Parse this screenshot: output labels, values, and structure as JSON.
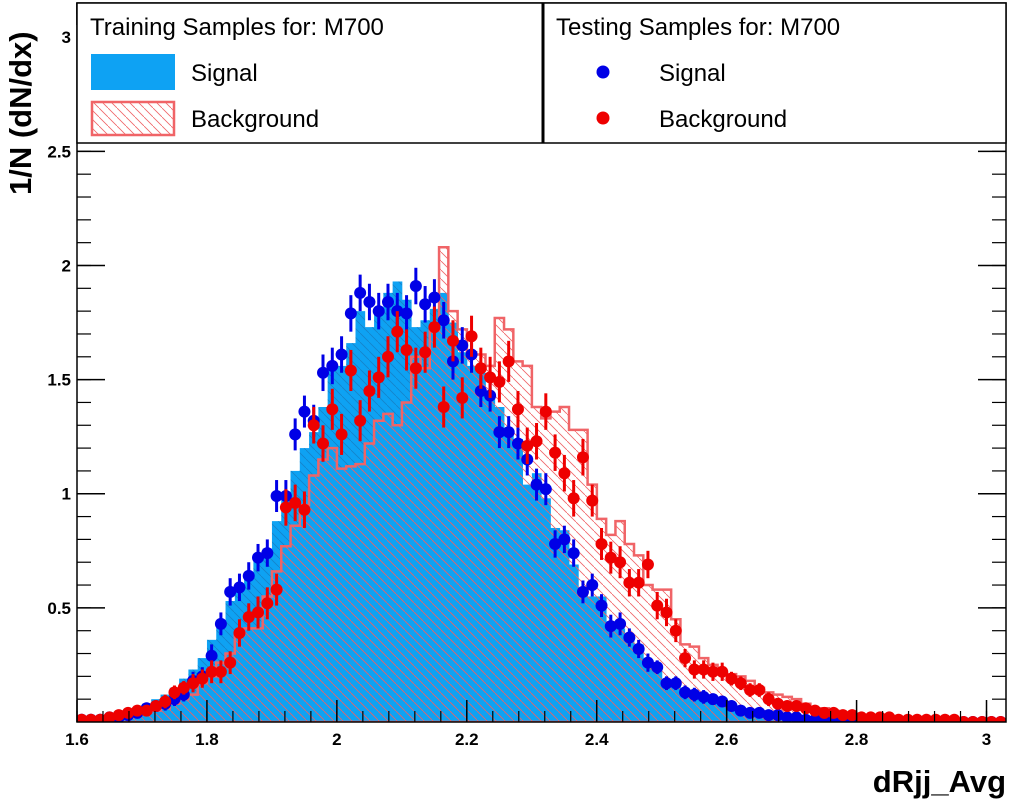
{
  "chart_data": {
    "type": "histogram",
    "xlabel": "dRjj_Avg",
    "ylabel": "1/N (dN/dx)",
    "xlim": [
      1.6,
      3.03
    ],
    "ylim": [
      0,
      3.15
    ],
    "x_ticks": [
      "1.6",
      "1.8",
      "2",
      "2.2",
      "2.4",
      "2.6",
      "2.8",
      "3"
    ],
    "x_tick_values": [
      1.6,
      1.8,
      2.0,
      2.2,
      2.4,
      2.6,
      2.8,
      3.0
    ],
    "y_ticks": [
      "0.5",
      "1",
      "1.5",
      "2",
      "2.5",
      "3"
    ],
    "y_tick_values": [
      0.5,
      1.0,
      1.5,
      2.0,
      2.5,
      3.0
    ],
    "bin_start": 1.6,
    "bin_width": 0.01429,
    "legend": {
      "training_title": "Training Samples for: M700",
      "testing_title": "Testing Samples for: M700",
      "signal_label": "Signal",
      "background_label": "Background"
    },
    "colors": {
      "signal_fill": "#0ea2f3",
      "background_line": "#f06467",
      "signal_points": "#0000e6",
      "background_points": "#ee0000"
    },
    "series": [
      {
        "name": "Signal",
        "kind": "training-filled",
        "values": [
          0.01,
          0.01,
          0.02,
          0.02,
          0.03,
          0.04,
          0.05,
          0.08,
          0.1,
          0.12,
          0.15,
          0.19,
          0.23,
          0.28,
          0.36,
          0.44,
          0.53,
          0.6,
          0.64,
          0.73,
          0.76,
          0.88,
          1.0,
          1.1,
          1.2,
          1.27,
          1.38,
          1.55,
          1.56,
          1.66,
          1.8,
          1.73,
          1.8,
          1.88,
          1.93,
          1.85,
          1.73,
          1.76,
          1.81,
          1.88,
          1.75,
          1.62,
          1.56,
          1.53,
          1.43,
          1.38,
          1.28,
          1.24,
          1.04,
          1.09,
          0.98,
          0.85,
          0.84,
          0.69,
          0.58,
          0.55,
          0.55,
          0.44,
          0.41,
          0.36,
          0.34,
          0.27,
          0.25,
          0.18,
          0.18,
          0.14,
          0.11,
          0.09,
          0.08,
          0.07,
          0.06,
          0.04,
          0.03,
          0.03,
          0.03,
          0.02,
          0.02,
          0.01,
          0.02,
          0.01,
          0.01,
          0.01,
          0.01,
          0.0,
          0.0,
          0.0,
          0.0,
          0.0,
          0.0,
          0.0,
          0.0,
          0.0,
          0.0,
          0.0,
          0.0,
          0.0,
          0.0,
          0.0,
          0.0,
          0.0
        ]
      },
      {
        "name": "Background",
        "kind": "training-hatched",
        "values": [
          0.01,
          0.01,
          0.01,
          0.01,
          0.02,
          0.02,
          0.03,
          0.04,
          0.05,
          0.06,
          0.08,
          0.1,
          0.12,
          0.17,
          0.2,
          0.26,
          0.3,
          0.38,
          0.41,
          0.41,
          0.55,
          0.66,
          0.77,
          0.86,
          0.95,
          1.08,
          1.15,
          1.2,
          1.11,
          1.12,
          1.13,
          1.22,
          1.32,
          1.35,
          1.3,
          1.4,
          1.6,
          1.55,
          1.72,
          2.08,
          1.8,
          1.72,
          1.62,
          1.61,
          1.56,
          1.77,
          1.72,
          1.58,
          1.56,
          1.38,
          1.33,
          1.36,
          1.38,
          1.28,
          1.28,
          1.04,
          0.89,
          0.82,
          0.88,
          0.78,
          0.73,
          0.6,
          0.58,
          0.58,
          0.45,
          0.34,
          0.33,
          0.28,
          0.25,
          0.22,
          0.21,
          0.2,
          0.18,
          0.15,
          0.13,
          0.12,
          0.11,
          0.1,
          0.08,
          0.06,
          0.06,
          0.05,
          0.04,
          0.03,
          0.03,
          0.03,
          0.02,
          0.02,
          0.01,
          0.01,
          0.01,
          0.01,
          0.01,
          0.01,
          0.01,
          0.0,
          0.0,
          0.0,
          0.0,
          0.0
        ]
      },
      {
        "name": "Signal",
        "kind": "testing-points",
        "values": [
          0.01,
          0.01,
          0.01,
          0.02,
          0.02,
          0.03,
          0.04,
          0.06,
          0.07,
          0.08,
          0.1,
          0.12,
          0.18,
          0.2,
          0.29,
          0.43,
          0.57,
          0.59,
          0.64,
          0.72,
          0.74,
          0.99,
          0.99,
          1.26,
          1.36,
          1.32,
          1.53,
          1.56,
          1.61,
          1.79,
          1.88,
          1.84,
          1.8,
          1.84,
          1.8,
          1.79,
          1.91,
          1.83,
          1.86,
          1.76,
          1.58,
          1.65,
          1.61,
          1.45,
          1.43,
          1.27,
          1.27,
          1.22,
          1.15,
          1.04,
          1.02,
          0.78,
          0.8,
          0.74,
          0.57,
          0.6,
          0.51,
          0.42,
          0.43,
          0.37,
          0.32,
          0.26,
          0.24,
          0.17,
          0.17,
          0.13,
          0.12,
          0.11,
          0.1,
          0.09,
          0.07,
          0.05,
          0.04,
          0.04,
          0.03,
          0.03,
          0.02,
          0.02,
          0.01,
          0.01,
          0.01,
          0.01,
          0.01,
          0.01,
          0.0,
          0.0,
          0.0,
          0.0,
          0.0,
          0.0,
          0.0,
          0.0,
          0.0,
          0.0,
          0.0,
          0.0,
          0.0,
          0.0,
          0.0,
          0.0
        ],
        "errors": [
          0.01,
          0.01,
          0.01,
          0.01,
          0.01,
          0.02,
          0.02,
          0.02,
          0.02,
          0.03,
          0.03,
          0.03,
          0.04,
          0.04,
          0.05,
          0.05,
          0.06,
          0.06,
          0.06,
          0.06,
          0.06,
          0.07,
          0.07,
          0.07,
          0.07,
          0.07,
          0.08,
          0.08,
          0.08,
          0.08,
          0.08,
          0.08,
          0.08,
          0.08,
          0.08,
          0.08,
          0.08,
          0.08,
          0.08,
          0.08,
          0.08,
          0.08,
          0.08,
          0.07,
          0.07,
          0.07,
          0.07,
          0.07,
          0.07,
          0.07,
          0.07,
          0.06,
          0.06,
          0.06,
          0.05,
          0.05,
          0.05,
          0.05,
          0.05,
          0.04,
          0.04,
          0.04,
          0.03,
          0.03,
          0.03,
          0.03,
          0.03,
          0.03,
          0.02,
          0.02,
          0.02,
          0.02,
          0.02,
          0.02,
          0.01,
          0.01,
          0.01,
          0.01,
          0.01,
          0.01,
          0.01,
          0.01,
          0.01,
          0.01,
          0.01,
          0.01,
          0.01,
          0.01,
          0.01,
          0.01,
          0.01,
          0.01,
          0.01,
          0.01,
          0.01,
          0.01,
          0.01,
          0.01,
          0.01,
          0.01
        ]
      },
      {
        "name": "Background",
        "kind": "testing-points",
        "values": [
          0.01,
          0.01,
          0.01,
          0.02,
          0.03,
          0.04,
          0.05,
          0.05,
          0.07,
          0.09,
          0.13,
          0.15,
          0.17,
          0.19,
          0.22,
          0.22,
          0.26,
          0.39,
          0.46,
          0.48,
          0.52,
          0.58,
          0.94,
          0.96,
          0.93,
          1.3,
          1.22,
          1.37,
          1.26,
          1.54,
          1.32,
          1.45,
          1.51,
          1.6,
          1.71,
          1.63,
          1.55,
          1.62,
          1.73,
          1.38,
          1.67,
          1.42,
          1.69,
          1.55,
          1.51,
          1.49,
          1.58,
          1.37,
          1.21,
          1.23,
          1.36,
          1.18,
          1.09,
          0.98,
          1.16,
          0.97,
          0.78,
          0.72,
          0.7,
          0.61,
          0.61,
          0.69,
          0.51,
          0.48,
          0.4,
          0.28,
          0.23,
          0.23,
          0.22,
          0.22,
          0.19,
          0.17,
          0.14,
          0.14,
          0.1,
          0.08,
          0.07,
          0.07,
          0.06,
          0.05,
          0.04,
          0.04,
          0.03,
          0.03,
          0.02,
          0.02,
          0.02,
          0.02,
          0.01,
          0.01,
          0.01,
          0.01,
          0.01,
          0.01,
          0.01,
          0.0,
          0.0,
          0.0,
          0.0,
          0.0
        ],
        "errors": [
          0.01,
          0.01,
          0.01,
          0.01,
          0.01,
          0.02,
          0.02,
          0.02,
          0.02,
          0.03,
          0.03,
          0.03,
          0.04,
          0.04,
          0.05,
          0.05,
          0.05,
          0.06,
          0.06,
          0.07,
          0.07,
          0.07,
          0.08,
          0.08,
          0.08,
          0.08,
          0.08,
          0.09,
          0.09,
          0.09,
          0.09,
          0.09,
          0.09,
          0.09,
          0.09,
          0.09,
          0.09,
          0.09,
          0.09,
          0.09,
          0.09,
          0.09,
          0.09,
          0.09,
          0.09,
          0.09,
          0.09,
          0.08,
          0.08,
          0.08,
          0.08,
          0.08,
          0.08,
          0.08,
          0.08,
          0.07,
          0.07,
          0.07,
          0.07,
          0.06,
          0.06,
          0.06,
          0.06,
          0.06,
          0.05,
          0.04,
          0.04,
          0.04,
          0.04,
          0.04,
          0.03,
          0.03,
          0.03,
          0.03,
          0.03,
          0.02,
          0.02,
          0.02,
          0.02,
          0.02,
          0.01,
          0.01,
          0.01,
          0.01,
          0.01,
          0.01,
          0.01,
          0.01,
          0.01,
          0.01,
          0.01,
          0.01,
          0.01,
          0.01,
          0.01,
          0.01,
          0.01,
          0.01,
          0.01,
          0.01
        ]
      }
    ]
  }
}
